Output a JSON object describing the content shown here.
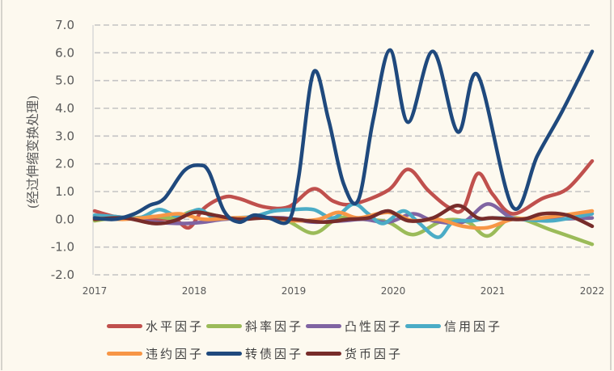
{
  "chart_data": {
    "type": "line",
    "title": "",
    "xlabel": "",
    "ylabel": "(经过伸缩变换处理)",
    "xlim": [
      2017,
      2022
    ],
    "ylim": [
      -2.0,
      7.0
    ],
    "x_ticks": [
      "2017",
      "2018",
      "2019",
      "2020",
      "2021",
      "2022"
    ],
    "y_ticks": [
      "7.0",
      "6.0",
      "5.0",
      "4.0",
      "3.0",
      "2.0",
      "1.0",
      "0.0",
      "-1.0",
      "-2.0"
    ],
    "y_tick_values": [
      7,
      6,
      5,
      4,
      3,
      2,
      1,
      0,
      -1,
      -2
    ],
    "grid": "horizontal-dashed",
    "legend_position": "bottom",
    "smooth": true,
    "series": [
      {
        "name": "水平因子",
        "color": "#c0504d",
        "x": [
          2017.0,
          2017.2,
          2017.4,
          2017.6,
          2017.8,
          2017.95,
          2018.1,
          2018.3,
          2018.45,
          2018.7,
          2018.95,
          2019.2,
          2019.4,
          2019.6,
          2019.95,
          2020.15,
          2020.35,
          2020.55,
          2020.7,
          2020.85,
          2021.0,
          2021.2,
          2021.5,
          2021.75,
          2022.0
        ],
        "values": [
          0.3,
          0.1,
          0.05,
          0.0,
          0.0,
          -0.3,
          0.4,
          0.8,
          0.75,
          0.45,
          0.45,
          1.1,
          0.65,
          0.55,
          1.05,
          1.8,
          1.05,
          0.45,
          0.35,
          1.65,
          0.9,
          0.2,
          0.75,
          1.1,
          2.1
        ]
      },
      {
        "name": "斜率因子",
        "color": "#9bbb59",
        "x": [
          2017.0,
          2017.2,
          2017.4,
          2017.6,
          2017.8,
          2018.0,
          2018.2,
          2018.4,
          2018.6,
          2018.9,
          2019.2,
          2019.45,
          2019.7,
          2019.95,
          2020.2,
          2020.5,
          2020.75,
          2020.95,
          2021.2,
          2021.6,
          2022.0
        ],
        "values": [
          -0.05,
          0.05,
          0.05,
          0.1,
          0.05,
          0.3,
          0.15,
          0.0,
          0.05,
          0.0,
          -0.5,
          0.05,
          0.0,
          -0.1,
          -0.55,
          -0.05,
          -0.1,
          -0.6,
          0.05,
          -0.4,
          -0.9
        ]
      },
      {
        "name": "凸性因子",
        "color": "#8064a2",
        "x": [
          2017.0,
          2017.3,
          2017.6,
          2017.9,
          2018.1,
          2018.3,
          2018.6,
          2018.9,
          2019.2,
          2019.5,
          2019.7,
          2019.95,
          2020.2,
          2020.4,
          2020.7,
          2020.95,
          2021.2,
          2021.5,
          2022.0
        ],
        "values": [
          0.1,
          0.05,
          -0.1,
          -0.15,
          -0.1,
          0.0,
          0.05,
          0.05,
          -0.1,
          -0.05,
          0.0,
          -0.1,
          0.2,
          -0.05,
          -0.1,
          0.55,
          0.05,
          0.0,
          0.05
        ]
      },
      {
        "name": "信用因子",
        "color": "#4bacc6",
        "x": [
          2017.0,
          2017.2,
          2017.45,
          2017.65,
          2017.85,
          2018.05,
          2018.2,
          2018.4,
          2018.6,
          2018.8,
          2019.0,
          2019.2,
          2019.4,
          2019.6,
          2019.75,
          2019.9,
          2020.1,
          2020.25,
          2020.45,
          2020.6,
          2020.8,
          2021.0,
          2021.3,
          2021.6,
          2022.0
        ],
        "values": [
          0.15,
          0.1,
          0.05,
          0.35,
          0.1,
          0.35,
          0.05,
          0.05,
          0.1,
          0.3,
          0.35,
          0.35,
          0.05,
          0.55,
          0.2,
          -0.15,
          0.3,
          -0.1,
          -0.65,
          -0.1,
          -0.05,
          0.05,
          0.0,
          -0.05,
          0.2
        ]
      },
      {
        "name": "违约因子",
        "color": "#f79646",
        "x": [
          2017.0,
          2017.3,
          2017.6,
          2017.85,
          2018.1,
          2018.4,
          2018.7,
          2019.0,
          2019.25,
          2019.45,
          2019.65,
          2019.95,
          2020.2,
          2020.45,
          2020.7,
          2020.95,
          2021.2,
          2021.5,
          2022.0
        ],
        "values": [
          0.05,
          0.0,
          0.1,
          0.2,
          0.0,
          0.05,
          0.05,
          -0.05,
          0.0,
          0.25,
          0.05,
          0.25,
          -0.05,
          0.0,
          -0.25,
          -0.3,
          0.0,
          0.05,
          0.3
        ]
      },
      {
        "name": "转债因子",
        "color": "#1f497d",
        "x": [
          2017.0,
          2017.2,
          2017.4,
          2017.55,
          2017.7,
          2017.9,
          2018.05,
          2018.15,
          2018.3,
          2018.45,
          2018.6,
          2018.75,
          2018.95,
          2019.05,
          2019.2,
          2019.35,
          2019.5,
          2019.65,
          2019.8,
          2019.97,
          2020.15,
          2020.4,
          2020.65,
          2020.85,
          2021.2,
          2021.45,
          2021.7,
          2022.0
        ],
        "values": [
          0.05,
          0.0,
          0.2,
          0.5,
          0.75,
          1.75,
          1.95,
          1.7,
          0.3,
          -0.1,
          0.15,
          0.05,
          -0.05,
          1.5,
          5.3,
          3.6,
          1.3,
          0.7,
          3.6,
          6.1,
          3.5,
          6.05,
          3.15,
          5.2,
          0.45,
          2.3,
          3.9,
          6.05
        ]
      },
      {
        "name": "货币因子",
        "color": "#772c2a",
        "x": [
          2017.0,
          2017.3,
          2017.6,
          2017.8,
          2018.0,
          2018.2,
          2018.45,
          2018.7,
          2019.0,
          2019.3,
          2019.55,
          2019.75,
          2019.95,
          2020.15,
          2020.4,
          2020.65,
          2020.85,
          2021.0,
          2021.3,
          2021.5,
          2021.75,
          2022.0
        ],
        "values": [
          0.0,
          0.05,
          -0.15,
          -0.05,
          0.25,
          0.15,
          0.0,
          0.05,
          0.0,
          -0.1,
          0.0,
          0.05,
          0.3,
          -0.05,
          0.05,
          0.5,
          0.05,
          0.05,
          0.0,
          0.2,
          0.15,
          -0.25
        ]
      }
    ]
  },
  "legend": {
    "rows": [
      [
        0,
        1,
        2,
        3
      ],
      [
        4,
        5,
        6
      ]
    ]
  }
}
